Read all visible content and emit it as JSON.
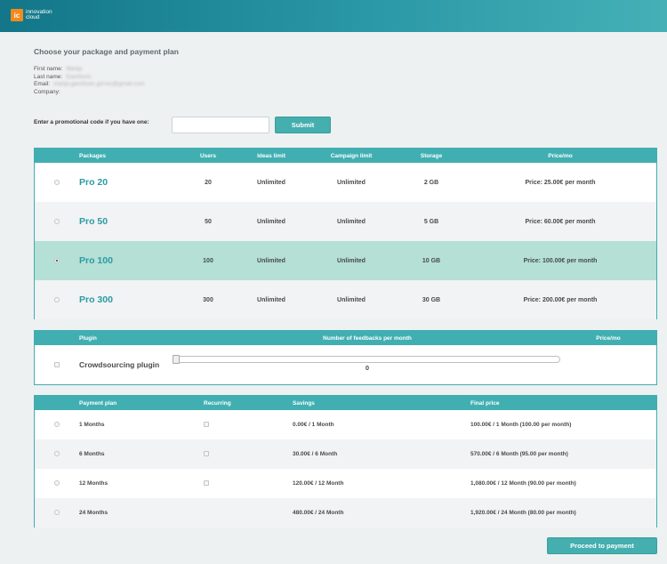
{
  "brand": {
    "mark": "ic",
    "line1": "innovation",
    "line2": "cloud"
  },
  "heading": "Choose your package and payment plan",
  "user": {
    "first_name_label": "First name:",
    "first_name": "Marija",
    "last_name_label": "Last name:",
    "last_name": "Gavrilovic",
    "email_label": "Email:",
    "email": "marija.gavrilovic.gd+es@gmail.com",
    "company_label": "Company:"
  },
  "promo": {
    "label": "Enter a promotional code if you have one:",
    "value": "",
    "placeholder": "",
    "submit": "Submit"
  },
  "packages": {
    "headers": {
      "name": "Packages",
      "users": "Users",
      "ideas": "Ideas limit",
      "campaign": "Campaign limit",
      "storage": "Storage",
      "price": "Price/mo"
    },
    "rows": [
      {
        "name": "Pro 20",
        "users": "20",
        "ideas": "Unlimited",
        "campaign": "Unlimited",
        "storage": "2 GB",
        "price": "Price: 25.00€ per month",
        "selected": false
      },
      {
        "name": "Pro 50",
        "users": "50",
        "ideas": "Unlimited",
        "campaign": "Unlimited",
        "storage": "5 GB",
        "price": "Price: 60.00€ per month",
        "selected": false
      },
      {
        "name": "Pro 100",
        "users": "100",
        "ideas": "Unlimited",
        "campaign": "Unlimited",
        "storage": "10 GB",
        "price": "Price: 100.00€ per month",
        "selected": true
      },
      {
        "name": "Pro 300",
        "users": "300",
        "ideas": "Unlimited",
        "campaign": "Unlimited",
        "storage": "30 GB",
        "price": "Price: 200.00€ per month",
        "selected": false
      }
    ]
  },
  "plugin": {
    "headers": {
      "plugin": "Plugin",
      "feedbacks": "Number of feedbacks per month",
      "price": "Price/mo"
    },
    "name": "Crowdsourcing plugin",
    "slider_value": "0",
    "price": ""
  },
  "payment": {
    "headers": {
      "plan": "Payment plan",
      "recurring": "Recurring",
      "savings": "Savings",
      "final": "Final price"
    },
    "rows": [
      {
        "plan": "1 Months",
        "savings": "0.00€ / 1 Month",
        "final": "100.00€ / 1 Month (100.00 per month)",
        "has_recurring": true
      },
      {
        "plan": "6 Months",
        "savings": "30.00€ / 6 Month",
        "final": "570.00€ / 6 Month (95.00 per month)",
        "has_recurring": true
      },
      {
        "plan": "12 Months",
        "savings": "120.00€ / 12 Month",
        "final": "1,080.00€ / 12 Month (90.00 per month)",
        "has_recurring": true
      },
      {
        "plan": "24 Months",
        "savings": "480.00€ / 24 Month",
        "final": "1,920.00€ / 24 Month (80.00 per month)",
        "has_recurring": false
      }
    ]
  },
  "proceed": "Proceed to payment",
  "colors": {
    "header_start": "#127688",
    "header_end": "#45b0b6",
    "accent": "#41afb2",
    "selected_row": "#b4e0d6",
    "logo": "#f28a1e"
  }
}
